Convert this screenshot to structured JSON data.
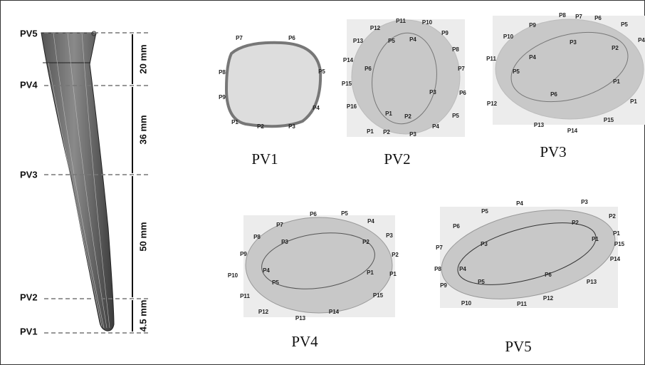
{
  "left_panel": {
    "levels": [
      "PV5",
      "PV4",
      "PV3",
      "PV2",
      "PV1"
    ],
    "dimensions": [
      "20 mm",
      "36 mm",
      "50 mm",
      "4.5 mm"
    ]
  },
  "sections": [
    {
      "title": "PV1",
      "outer_points": [
        "P1",
        "P2",
        "P3",
        "P4",
        "P5",
        "P6",
        "P7",
        "P8",
        "P9"
      ]
    },
    {
      "title": "PV2",
      "outer_points": [
        "P1",
        "P2",
        "P3",
        "P4",
        "P5",
        "P6",
        "P7",
        "P8",
        "P9",
        "P10",
        "P11",
        "P12",
        "P13",
        "P14",
        "P15",
        "P16"
      ],
      "inner_points": [
        "P1",
        "P2",
        "P3",
        "P4",
        "P5",
        "P6"
      ]
    },
    {
      "title": "PV3",
      "outer_points": [
        "P1",
        "P4",
        "P5",
        "P6",
        "P7",
        "P8",
        "P9",
        "P10",
        "P11",
        "P12",
        "P13",
        "P14",
        "P15"
      ],
      "inner_points": [
        "P1",
        "P2",
        "P3",
        "P4",
        "P5",
        "P6"
      ]
    },
    {
      "title": "PV4",
      "outer_points": [
        "P1",
        "P2",
        "P3",
        "P4",
        "P5",
        "P6",
        "P7",
        "P8",
        "P9",
        "P10",
        "P11",
        "P12",
        "P13",
        "P14",
        "P15"
      ],
      "inner_points": [
        "P1",
        "P2",
        "P3",
        "P4",
        "P5"
      ]
    },
    {
      "title": "PV5",
      "outer_points": [
        "P1",
        "P2",
        "P3",
        "P4",
        "P5",
        "P6",
        "P7",
        "P8",
        "P9",
        "P10",
        "P11",
        "P12",
        "P13",
        "P14",
        "P15"
      ],
      "inner_points": [
        "P1",
        "P2",
        "P3",
        "P4",
        "P5",
        "P6"
      ]
    }
  ]
}
